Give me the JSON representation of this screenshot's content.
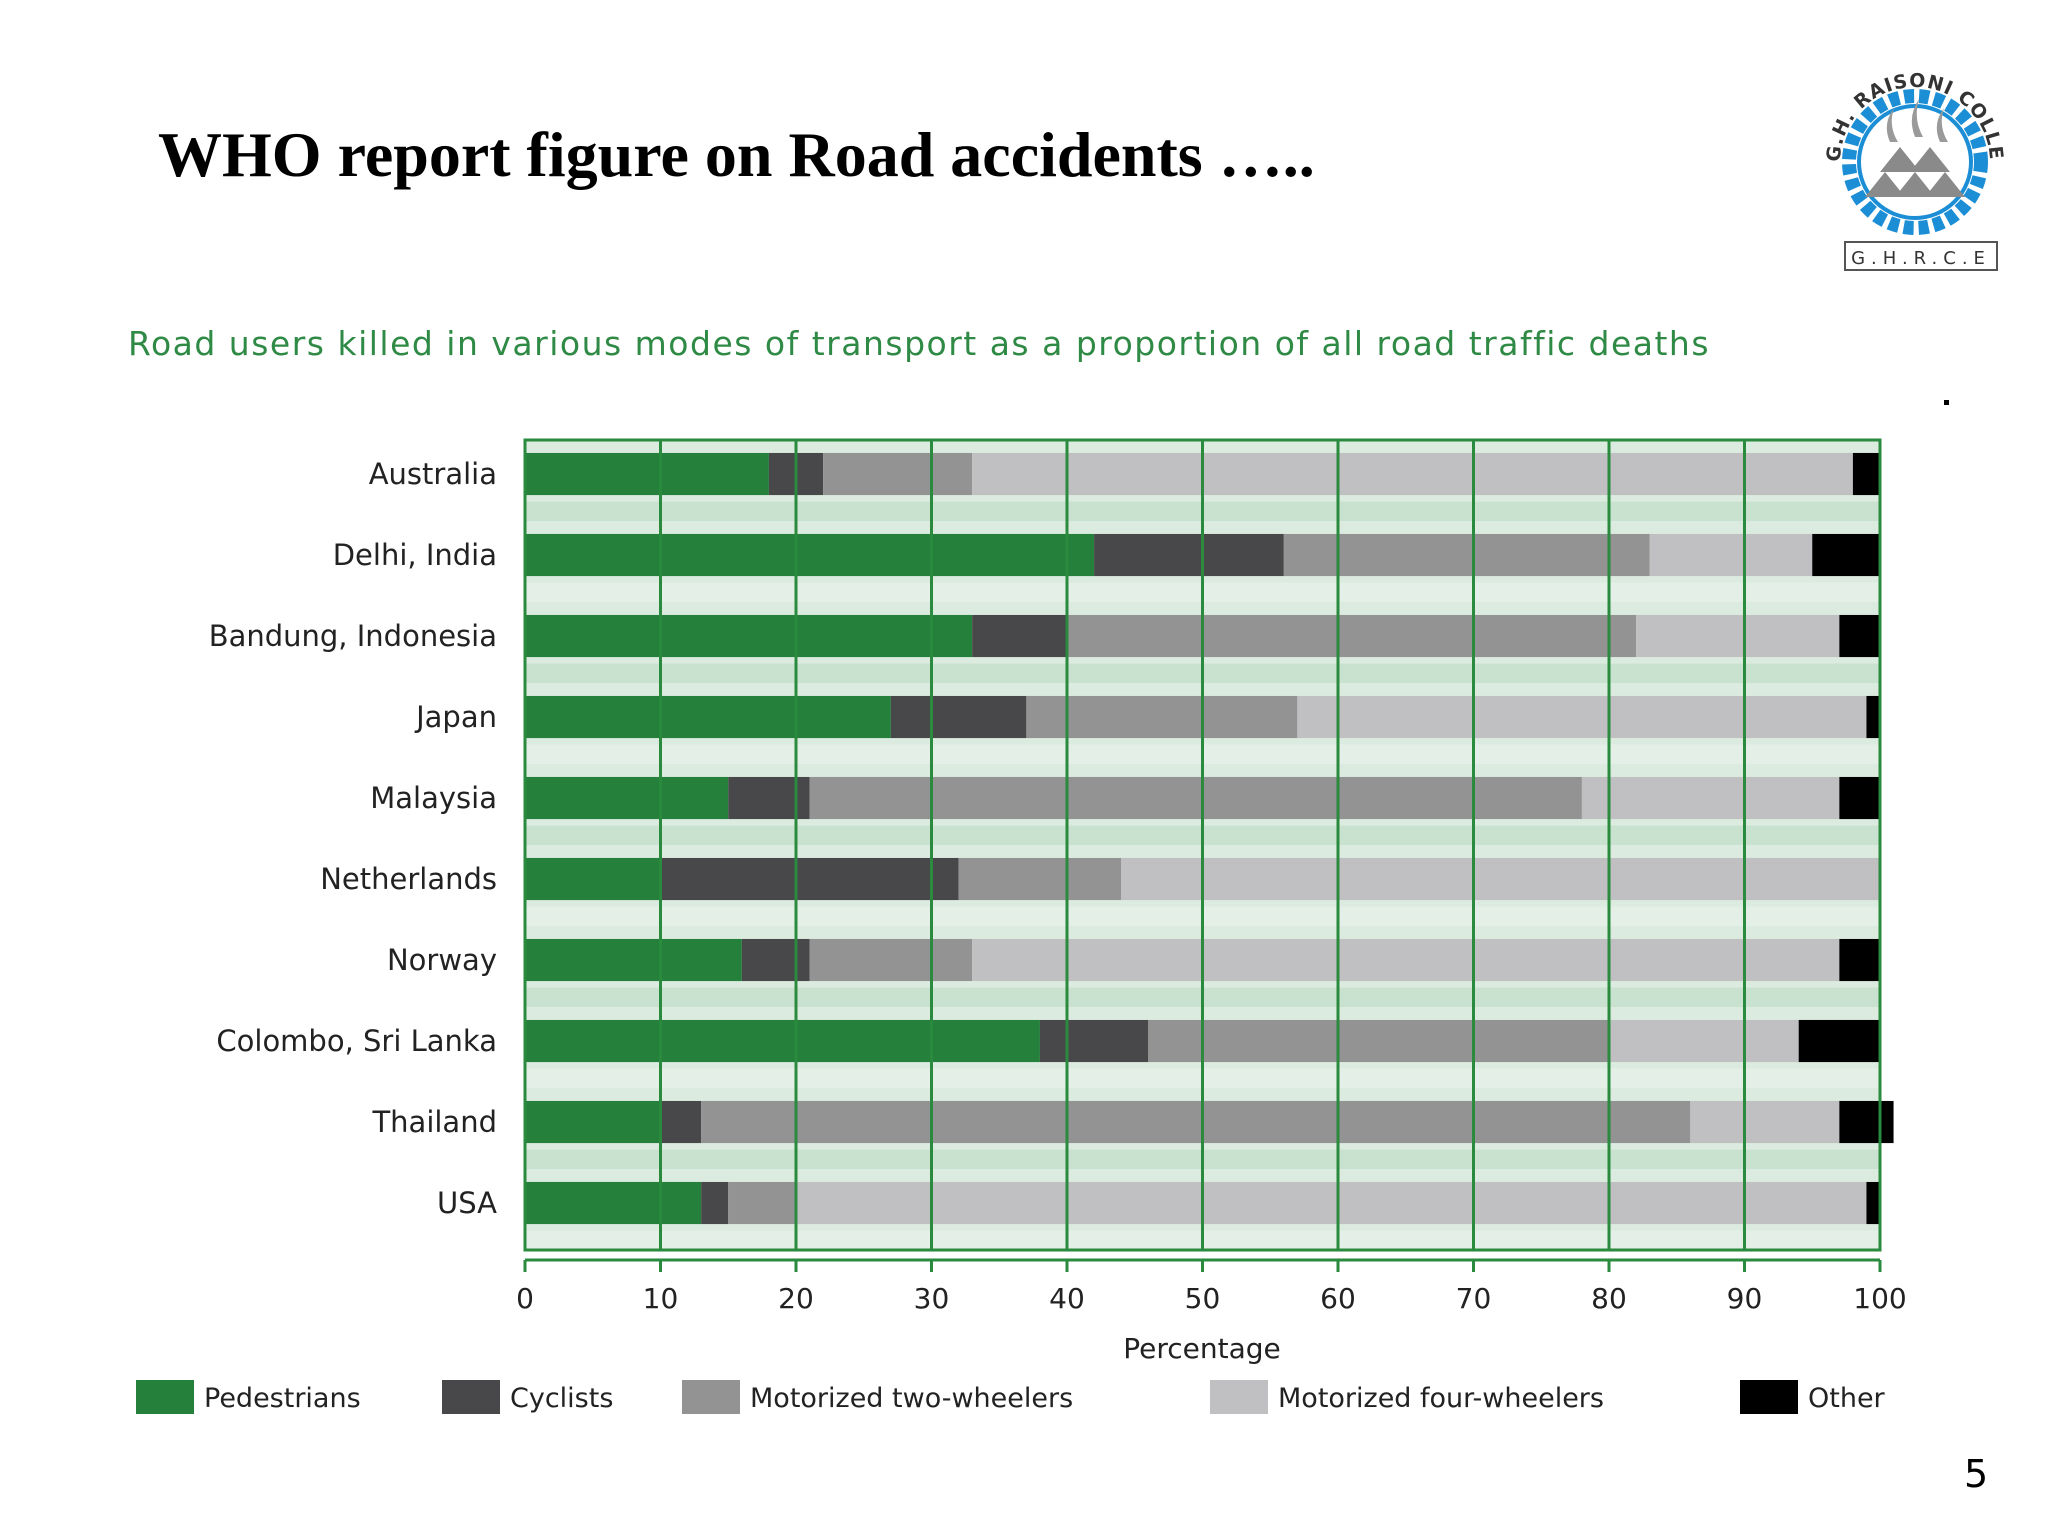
{
  "slide": {
    "title": "WHO report figure on Road accidents …..",
    "page_number": "5"
  },
  "logo": {
    "ring_text": "G.H. RAISONI COLLEGE OF ENGINEERING",
    "abbrev": "G.H.R.C.E",
    "ring_color": "#1b8ed6"
  },
  "chart_data": {
    "type": "bar",
    "orientation": "horizontal",
    "stacked": true,
    "title": "Road users killed in various modes of transport as a proportion of all road traffic deaths",
    "xlabel": "Percentage",
    "ylabel": "",
    "xlim": [
      0,
      100
    ],
    "xticks": [
      0,
      10,
      20,
      30,
      40,
      50,
      60,
      70,
      80,
      90,
      100
    ],
    "grid": true,
    "legend_position": "bottom",
    "categories": [
      "Australia",
      "Delhi, India",
      "Bandung, Indonesia",
      "Japan",
      "Malaysia",
      "Netherlands",
      "Norway",
      "Colombo, Sri Lanka",
      "Thailand",
      "USA"
    ],
    "series": [
      {
        "name": "Pedestrians",
        "color": "#24803a",
        "values": [
          18,
          42,
          33,
          27,
          15,
          10,
          16,
          38,
          10,
          13
        ]
      },
      {
        "name": "Cyclists",
        "color": "#48484a",
        "values": [
          4,
          14,
          7,
          10,
          6,
          22,
          5,
          8,
          3,
          2
        ]
      },
      {
        "name": "Motorized two-wheelers",
        "color": "#939393",
        "values": [
          11,
          27,
          42,
          20,
          57,
          12,
          12,
          34,
          73,
          5
        ]
      },
      {
        "name": "Motorized four-wheelers",
        "color": "#c0bfc1",
        "values": [
          65,
          12,
          15,
          42,
          19,
          56,
          64,
          14,
          11,
          79
        ]
      },
      {
        "name": "Other",
        "color": "#000000",
        "values": [
          2,
          5,
          3,
          1,
          3,
          0,
          3,
          6,
          4,
          1
        ]
      }
    ]
  }
}
